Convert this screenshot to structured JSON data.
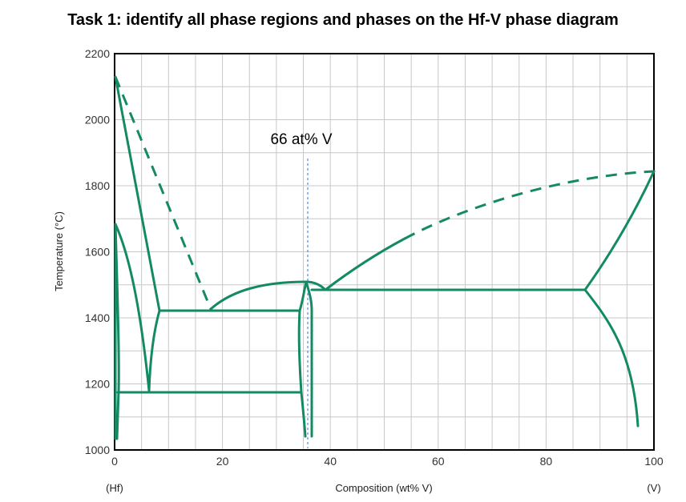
{
  "title": "Task 1: identify all phase regions and phases on the Hf-V phase diagram",
  "colors": {
    "curve": "#138a64",
    "marker": "#3b6fd6",
    "grid": "#c8c8c8"
  },
  "annotation": "66 at% V",
  "chart_data": {
    "type": "phase-diagram",
    "xlabel": "Composition (wt% V)",
    "ylabel": "Temperature (°C)",
    "xlim": [
      0,
      100
    ],
    "ylim": [
      1000,
      2200
    ],
    "x_ticks": [
      "0",
      "20",
      "40",
      "60",
      "80",
      "100"
    ],
    "y_ticks": [
      "1000",
      "1200",
      "1400",
      "1600",
      "1800",
      "2000",
      "2200"
    ],
    "x_end_labels": {
      "left": "(Hf)",
      "right": "(V)"
    },
    "grid": true,
    "marker_line": {
      "x": 35.9,
      "label": "66 at% V"
    },
    "features": {
      "eutectic_low": {
        "temperature": 1450,
        "compositions": [
          8.1,
          17.7,
          34.5
        ]
      },
      "congruent_max": {
        "temperature": 1550,
        "composition": 35.9
      },
      "eutectic_high": {
        "temperature": 1520,
        "compositions": [
          36.5,
          39.5,
          87.3
        ]
      },
      "eutectoid": {
        "temperature": 1185,
        "compositions": [
          0.5,
          6.3,
          34.5
        ]
      },
      "hf_melting": {
        "temperature": 2222,
        "composition": 0
      },
      "v_melting": {
        "temperature": 1900,
        "composition": 100
      }
    }
  }
}
